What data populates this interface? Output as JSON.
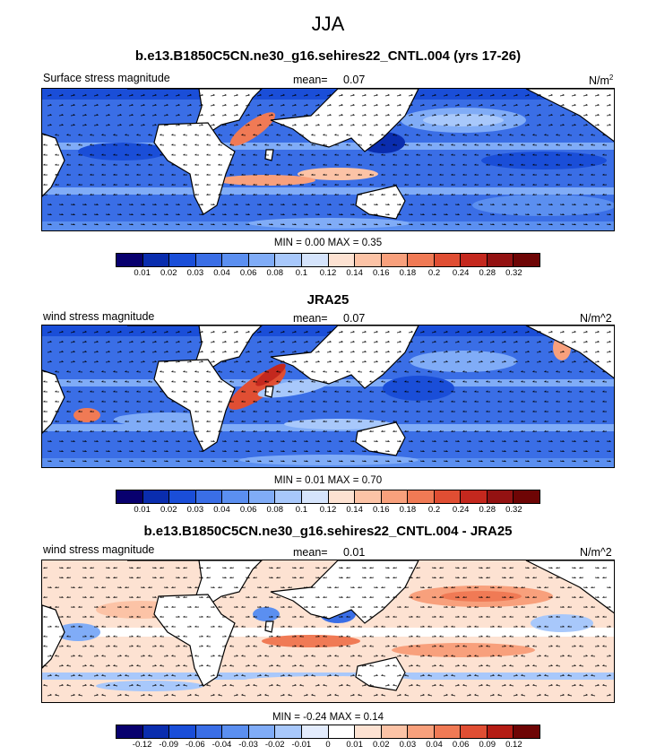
{
  "figure_title": "JJA",
  "panels": [
    {
      "title": "b.e13.B1850C5CN.ne30_g16.sehires22_CNTL.004 (yrs 17-26)",
      "left_label": "Surface stress magnitude",
      "mean_label": "mean=",
      "mean_value": "0.07",
      "units": "N/m",
      "units_sup": "2",
      "min_label": "MIN =",
      "min_value": "0.00",
      "max_label": "MAX =",
      "max_value": "0.35",
      "colorbar": {
        "colors": [
          "#08006e",
          "#0a2dae",
          "#1a4ed8",
          "#3a6ee6",
          "#5b8ff0",
          "#80acf7",
          "#a8c8fb",
          "#d5e4fc",
          "#fde2d2",
          "#fcc3a6",
          "#f8a07c",
          "#f07a55",
          "#e04e33",
          "#c4281e",
          "#931212",
          "#6e0505"
        ],
        "labels": [
          "0.01",
          "0.02",
          "0.03",
          "0.04",
          "0.06",
          "0.08",
          "0.1",
          "0.12",
          "0.14",
          "0.16",
          "0.18",
          "0.2",
          "0.24",
          "0.28",
          "0.32"
        ]
      }
    },
    {
      "title": "JRA25",
      "left_label": "wind stress magnitude",
      "mean_label": "mean=",
      "mean_value": "0.07",
      "units": "N/m^2",
      "min_label": "MIN =",
      "min_value": "0.01",
      "max_label": "MAX =",
      "max_value": "0.70",
      "colorbar": {
        "colors": [
          "#08006e",
          "#0a2dae",
          "#1a4ed8",
          "#3a6ee6",
          "#5b8ff0",
          "#80acf7",
          "#a8c8fb",
          "#d5e4fc",
          "#fde2d2",
          "#fcc3a6",
          "#f8a07c",
          "#f07a55",
          "#e04e33",
          "#c4281e",
          "#931212",
          "#6e0505"
        ],
        "labels": [
          "0.01",
          "0.02",
          "0.03",
          "0.04",
          "0.06",
          "0.08",
          "0.1",
          "0.12",
          "0.14",
          "0.16",
          "0.18",
          "0.2",
          "0.24",
          "0.28",
          "0.32"
        ]
      }
    },
    {
      "title": "b.e13.B1850C5CN.ne30_g16.sehires22_CNTL.004 - JRA25",
      "left_label": "wind stress magnitude",
      "mean_label": "mean=",
      "mean_value": "0.01",
      "units": "N/m^2",
      "min_label": "MIN =",
      "min_value": "-0.24",
      "max_label": "MAX =",
      "max_value": "0.14",
      "colorbar": {
        "colors": [
          "#08006e",
          "#0a2dae",
          "#1a4ed8",
          "#3a6ee6",
          "#5b8ff0",
          "#80acf7",
          "#a8c8fb",
          "#e3ecfd",
          "#ffffff",
          "#fde2d2",
          "#fcc3a6",
          "#f8a07c",
          "#f07a55",
          "#e04e33",
          "#b41c14",
          "#6e0505"
        ],
        "labels": [
          "-0.12",
          "-0.09",
          "-0.06",
          "-0.04",
          "-0.03",
          "-0.02",
          "-0.01",
          "0",
          "0.01",
          "0.02",
          "0.03",
          "0.04",
          "0.06",
          "0.09",
          "0.12"
        ]
      }
    }
  ]
}
